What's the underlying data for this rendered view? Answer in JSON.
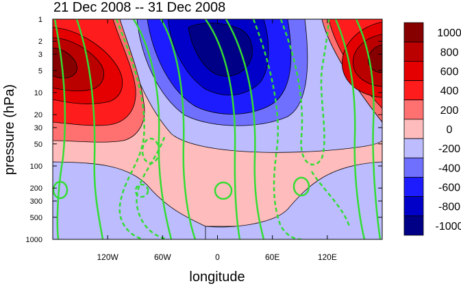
{
  "chart_data": {
    "type": "heatmap",
    "title": "21 Dec 2008 -- 31 Dec 2008",
    "xlabel": "longitude",
    "ylabel": "pressure (hPa)",
    "x_range": [
      -180,
      180
    ],
    "y_range": [
      1000,
      1
    ],
    "y_scale": "log",
    "x_ticks": [
      {
        "value": -120,
        "label": "120W"
      },
      {
        "value": -60,
        "label": "60W"
      },
      {
        "value": 0,
        "label": "0"
      },
      {
        "value": 60,
        "label": "60E"
      },
      {
        "value": 120,
        "label": "120E"
      }
    ],
    "y_ticks": [
      {
        "value": 1,
        "label": "1"
      },
      {
        "value": 2,
        "label": "2"
      },
      {
        "value": 3,
        "label": "3"
      },
      {
        "value": 5,
        "label": "5"
      },
      {
        "value": 10,
        "label": "10"
      },
      {
        "value": 20,
        "label": "20"
      },
      {
        "value": 30,
        "label": "30"
      },
      {
        "value": 50,
        "label": "50"
      },
      {
        "value": 100,
        "label": "100"
      },
      {
        "value": 200,
        "label": "200"
      },
      {
        "value": 300,
        "label": "300"
      },
      {
        "value": 500,
        "label": "500"
      },
      {
        "value": 1000,
        "label": "1000"
      }
    ],
    "colorbar": {
      "placement": "right",
      "levels": [
        "1000",
        "800",
        "600",
        "400",
        "200",
        "0",
        "-200",
        "-400",
        "-600",
        "-800",
        "-1000"
      ],
      "colors": [
        "#870000",
        "#bb0000",
        "#e40000",
        "#ff1c1c",
        "#ff7070",
        "#ffbcbc",
        "#bcbcff",
        "#7070ff",
        "#1c1cff",
        "#0000c8",
        "#000087"
      ]
    },
    "overlay_contours": {
      "color": "#33dd33",
      "positive_style": "solid",
      "negative_style": "dashed"
    }
  }
}
